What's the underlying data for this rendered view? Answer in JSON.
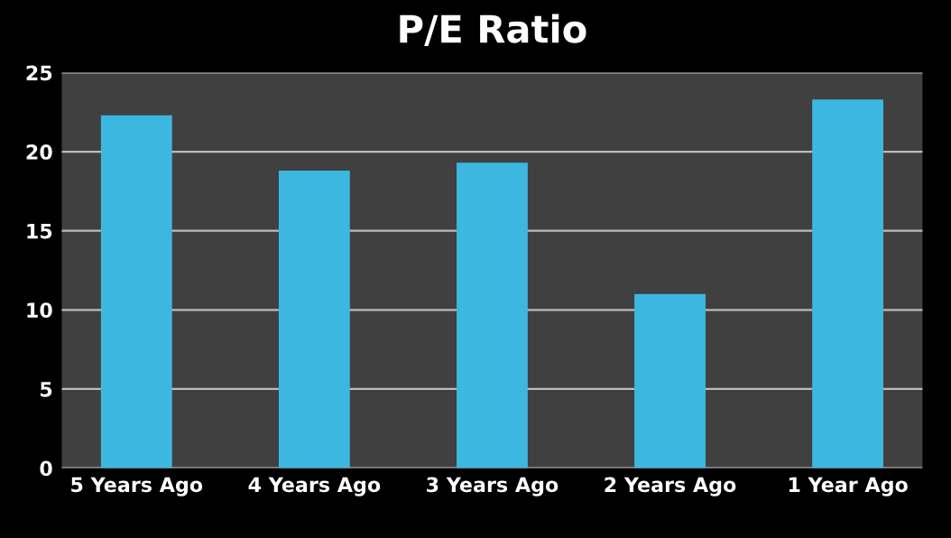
{
  "chart_data": {
    "type": "bar",
    "title": "P/E Ratio",
    "categories": [
      "5 Years Ago",
      "4 Years Ago",
      "3 Years Ago",
      "2 Years Ago",
      "1 Year Ago"
    ],
    "values": [
      22.3,
      18.8,
      19.3,
      11.0,
      23.3
    ],
    "color": "#3cb8e0",
    "ylim": [
      0,
      25
    ],
    "yticks": [
      0,
      5,
      10,
      15,
      20,
      25
    ],
    "grid": "y"
  }
}
